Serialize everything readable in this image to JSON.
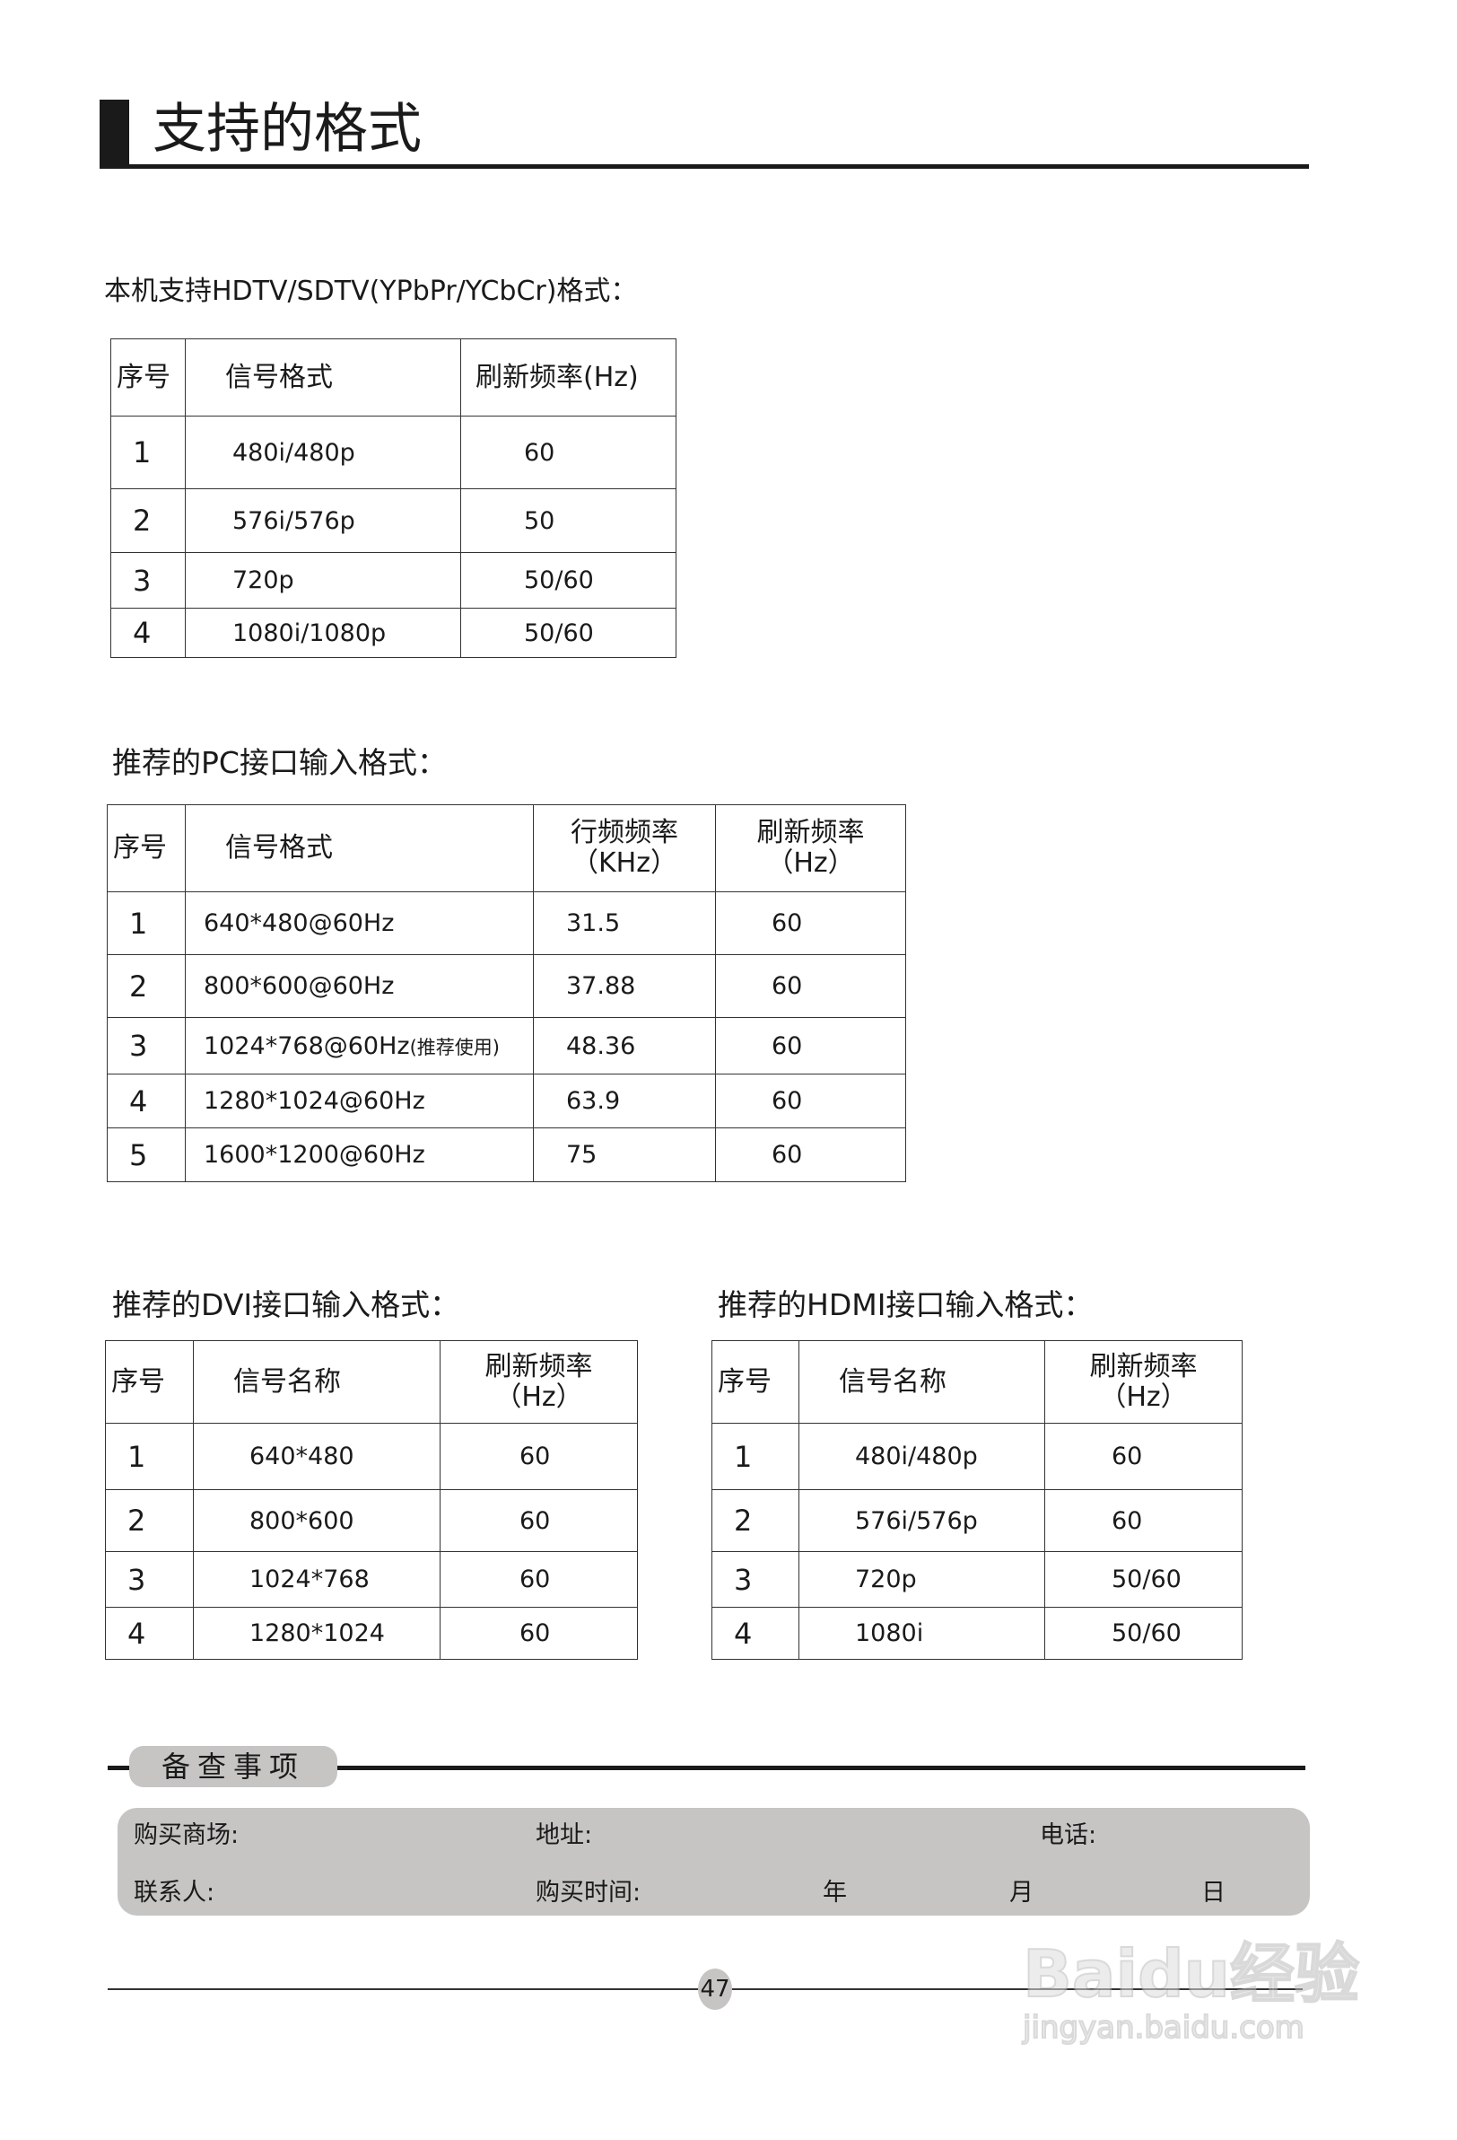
{
  "title": "支持的格式",
  "hdtv": {
    "heading": "本机支持HDTV/SDTV(YPbPr/YCbCr)格式：",
    "headers": [
      "序号",
      "信号格式",
      "刷新频率(Hz)"
    ],
    "rows": [
      [
        "1",
        "480i/480p",
        "60"
      ],
      [
        "2",
        "576i/576p",
        "50"
      ],
      [
        "3",
        "720p",
        "50/60"
      ],
      [
        "4",
        "1080i/1080p",
        "50/60"
      ]
    ]
  },
  "pc": {
    "heading": "推荐的PC接口输入格式：",
    "headers": [
      "序号",
      "信号格式",
      "行频频率\n（KHz）",
      "刷新频率\n（Hz）"
    ],
    "rows": [
      [
        "1",
        "640*480@60Hz",
        "31.5",
        "60"
      ],
      [
        "2",
        "800*600@60Hz",
        "37.88",
        "60"
      ],
      [
        "3",
        "1024*768@60Hz",
        "48.36",
        "60"
      ],
      [
        "4",
        "1280*1024@60Hz",
        "63.9",
        "60"
      ],
      [
        "5",
        "1600*1200@60Hz",
        "75",
        "60"
      ]
    ],
    "row3_note": "(推荐使用)"
  },
  "dvi": {
    "heading": "推荐的DVI接口输入格式：",
    "headers": [
      "序号",
      "信号名称",
      "刷新频率\n（Hz）"
    ],
    "rows": [
      [
        "1",
        "640*480",
        "60"
      ],
      [
        "2",
        "800*600",
        "60"
      ],
      [
        "3",
        "1024*768",
        "60"
      ],
      [
        "4",
        "1280*1024",
        "60"
      ]
    ]
  },
  "hdmi": {
    "heading": "推荐的HDMI接口输入格式：",
    "headers": [
      "序号",
      "信号名称",
      "刷新频率\n（Hz）"
    ],
    "rows": [
      [
        "1",
        "480i/480p",
        "60"
      ],
      [
        "2",
        "576i/576p",
        "60"
      ],
      [
        "3",
        "720p",
        "50/60"
      ],
      [
        "4",
        "1080i",
        "50/60"
      ]
    ]
  },
  "remarks": {
    "title": "备查事项",
    "store": "购买商场:",
    "address": "地址:",
    "phone": "电话:",
    "contact": "联系人:",
    "purchase_time": "购买时间:",
    "year": "年",
    "month": "月",
    "day": "日"
  },
  "page_number": "47",
  "watermark": {
    "logo": "Baidu经验",
    "url": "jingyan.baidu.com"
  },
  "colors": {
    "ink": "#1a1a1a",
    "panel": "#c6c5c3"
  }
}
